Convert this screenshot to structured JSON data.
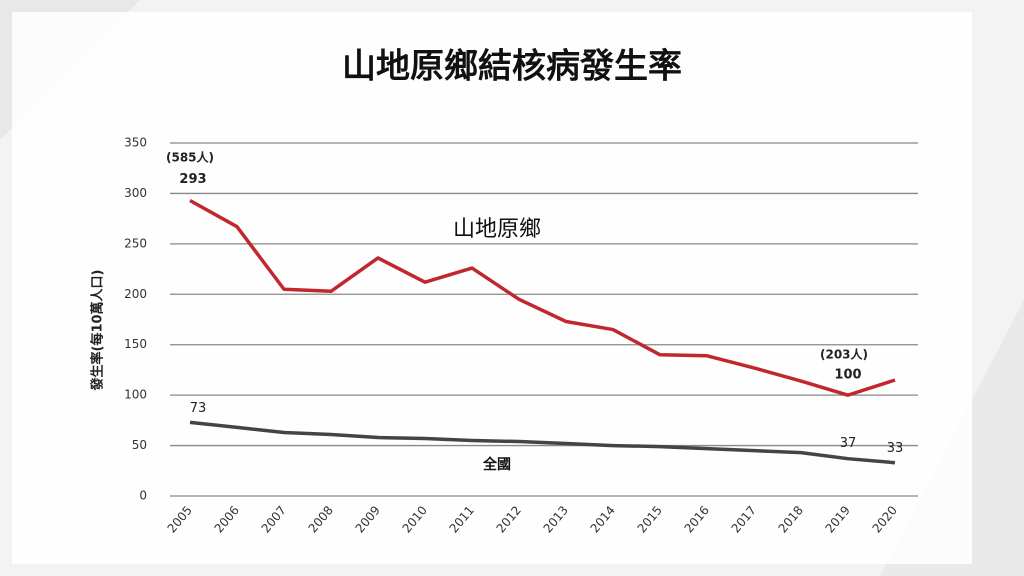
{
  "chart_data": {
    "type": "line",
    "title": "山地原鄉結核病發生率",
    "y_label": "發生率(每10萬人口)",
    "categories": [
      "2005",
      "2006",
      "2007",
      "2008",
      "2009",
      "2010",
      "2011",
      "2012",
      "2013",
      "2014",
      "2015",
      "2016",
      "2017",
      "2018",
      "2019",
      "2020"
    ],
    "series": [
      {
        "name": "山地原鄉",
        "color": "#c0282d",
        "values": [
          293,
          267,
          205,
          203,
          236,
          212,
          226,
          195,
          173,
          165,
          140,
          139,
          127,
          114,
          100,
          115
        ]
      },
      {
        "name": "全國",
        "color": "#444444",
        "values": [
          73,
          68,
          63,
          61,
          58,
          57,
          55,
          54,
          52,
          50,
          49,
          47,
          45,
          43,
          37,
          33
        ]
      }
    ],
    "annotations": [
      "(585人)",
      "(203人)"
    ],
    "ylim": [
      0,
      350
    ],
    "yticks": [
      0,
      50,
      100,
      150,
      200,
      250,
      300,
      350
    ],
    "grid": true
  }
}
